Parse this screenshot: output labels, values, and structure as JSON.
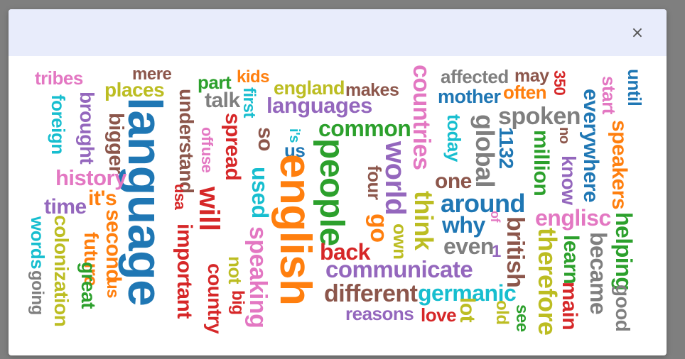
{
  "modal": {
    "close_label": "×"
  },
  "wordcloud": {
    "words": [
      {
        "text": "tribes",
        "color": "#e377c2"
      },
      {
        "text": "mere",
        "color": "#8c564b"
      },
      {
        "text": "part",
        "color": "#2ca02c"
      },
      {
        "text": "kids",
        "color": "#ff7f0e"
      },
      {
        "text": "england",
        "color": "#bcbd22"
      },
      {
        "text": "makes",
        "color": "#8c564b"
      },
      {
        "text": "affected",
        "color": "#7f7f7f"
      },
      {
        "text": "may",
        "color": "#8c564b"
      },
      {
        "text": "350",
        "color": "#d62728"
      },
      {
        "text": "start",
        "color": "#e377c2"
      },
      {
        "text": "until",
        "color": "#1f77b4"
      },
      {
        "text": "places",
        "color": "#bcbd22"
      },
      {
        "text": "talk",
        "color": "#7f7f7f"
      },
      {
        "text": "first",
        "color": "#17becf"
      },
      {
        "text": "languages",
        "color": "#9467bd"
      },
      {
        "text": "mother",
        "color": "#1f77b4"
      },
      {
        "text": "often",
        "color": "#ff7f0e"
      },
      {
        "text": "spoken",
        "color": "#7f7f7f"
      },
      {
        "text": "foreign",
        "color": "#17becf"
      },
      {
        "text": "brought",
        "color": "#9467bd"
      },
      {
        "text": "bigger",
        "color": "#8c564b"
      },
      {
        "text": "language",
        "color": "#1f77b4"
      },
      {
        "text": "understand",
        "color": "#8c564b"
      },
      {
        "text": "off",
        "color": "#e377c2"
      },
      {
        "text": "use",
        "color": "#e377c2"
      },
      {
        "text": "spread",
        "color": "#d62728"
      },
      {
        "text": "so",
        "color": "#8c564b"
      },
      {
        "text": "i's",
        "color": "#17becf"
      },
      {
        "text": "us",
        "color": "#1f77b4"
      },
      {
        "text": "common",
        "color": "#2ca02c"
      },
      {
        "text": "countries",
        "color": "#e377c2"
      },
      {
        "text": "today",
        "color": "#17becf"
      },
      {
        "text": "global",
        "color": "#7f7f7f"
      },
      {
        "text": "1132",
        "color": "#1f77b4"
      },
      {
        "text": "million",
        "color": "#2ca02c"
      },
      {
        "text": "no",
        "color": "#8c564b"
      },
      {
        "text": "everywhere",
        "color": "#1f77b4"
      },
      {
        "text": "speakers",
        "color": "#ff7f0e"
      },
      {
        "text": "history",
        "color": "#e377c2"
      },
      {
        "text": "it's",
        "color": "#ff7f0e"
      },
      {
        "text": "usa",
        "color": "#d62728"
      },
      {
        "text": "will",
        "color": "#d62728"
      },
      {
        "text": "used",
        "color": "#17becf"
      },
      {
        "text": "english",
        "color": "#ff7f0e"
      },
      {
        "text": "people",
        "color": "#2ca02c"
      },
      {
        "text": "four",
        "color": "#8c564b"
      },
      {
        "text": "world",
        "color": "#9467bd"
      },
      {
        "text": "one",
        "color": "#8c564b"
      },
      {
        "text": "know",
        "color": "#9467bd"
      },
      {
        "text": "time",
        "color": "#9467bd"
      },
      {
        "text": "around",
        "color": "#1f77b4"
      },
      {
        "text": "englisc",
        "color": "#e377c2"
      },
      {
        "text": "why",
        "color": "#1f77b4"
      },
      {
        "text": "of",
        "color": "#e377c2"
      },
      {
        "text": "think",
        "color": "#bcbd22"
      },
      {
        "text": "go",
        "color": "#ff7f0e"
      },
      {
        "text": "own",
        "color": "#bcbd22"
      },
      {
        "text": "british",
        "color": "#8c564b"
      },
      {
        "text": "helping",
        "color": "#2ca02c"
      },
      {
        "text": "words",
        "color": "#17becf"
      },
      {
        "text": "colonization",
        "color": "#bcbd22"
      },
      {
        "text": "future",
        "color": "#ff7f0e"
      },
      {
        "text": "second",
        "color": "#ff7f0e"
      },
      {
        "text": "important",
        "color": "#d62728"
      },
      {
        "text": "even",
        "color": "#7f7f7f"
      },
      {
        "text": "1",
        "color": "#9467bd"
      },
      {
        "text": "learn",
        "color": "#2ca02c"
      },
      {
        "text": "became",
        "color": "#7f7f7f"
      },
      {
        "text": "back",
        "color": "#d62728"
      },
      {
        "text": "communicate",
        "color": "#9467bd"
      },
      {
        "text": "therefore",
        "color": "#bcbd22"
      },
      {
        "text": "going",
        "color": "#7f7f7f"
      },
      {
        "text": "great",
        "color": "#2ca02c"
      },
      {
        "text": "us",
        "color": "#ff7f0e"
      },
      {
        "text": "country",
        "color": "#d62728"
      },
      {
        "text": "not",
        "color": "#bcbd22"
      },
      {
        "text": "speaking",
        "color": "#e377c2"
      },
      {
        "text": "big",
        "color": "#d62728"
      },
      {
        "text": "different",
        "color": "#8c564b"
      },
      {
        "text": "germanic",
        "color": "#17becf"
      },
      {
        "text": "main",
        "color": "#d62728"
      },
      {
        "text": "reasons",
        "color": "#9467bd"
      },
      {
        "text": "love",
        "color": "#d62728"
      },
      {
        "text": "lot",
        "color": "#bcbd22"
      },
      {
        "text": "old",
        "color": "#bcbd22"
      },
      {
        "text": "see",
        "color": "#2ca02c"
      },
      {
        "text": "good",
        "color": "#7f7f7f"
      }
    ]
  }
}
